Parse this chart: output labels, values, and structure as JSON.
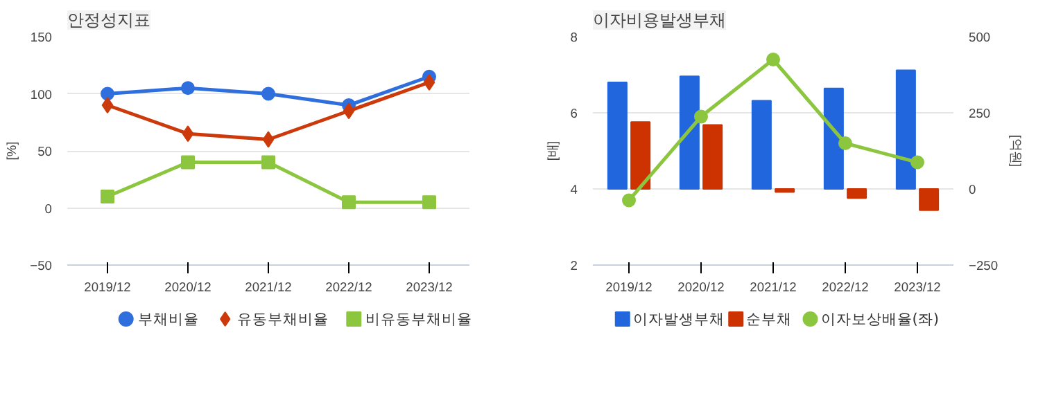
{
  "chart_data": [
    {
      "type": "line",
      "title": "안정성지표",
      "ylabel": "[%]",
      "categories": [
        "2019/12",
        "2020/12",
        "2021/12",
        "2022/12",
        "2023/12"
      ],
      "ylim": [
        -50,
        150
      ],
      "yticks": [
        -50,
        0,
        50,
        100,
        150
      ],
      "grid": "y",
      "legend": "bottom",
      "line_style": "solid",
      "series": [
        {
          "name": "부채비율",
          "color": "#2f6fdd",
          "marker": "circle",
          "values": [
            100,
            105,
            100,
            90,
            115
          ]
        },
        {
          "name": "유동부채비율",
          "color": "#cc3a0c",
          "marker": "diamond",
          "values": [
            90,
            65,
            60,
            85,
            110
          ]
        },
        {
          "name": "비유동부채비율",
          "color": "#8cc63f",
          "marker": "square",
          "values": [
            10,
            40,
            40,
            5,
            5
          ]
        }
      ]
    },
    {
      "type": "bar",
      "title": "이자비용발생부채",
      "ylabel": "[배]",
      "y2label": "[억원]",
      "categories": [
        "2019/12",
        "2020/12",
        "2021/12",
        "2022/12",
        "2023/12"
      ],
      "ylim": [
        2,
        8
      ],
      "yticks": [
        2,
        4,
        6,
        8
      ],
      "y2lim": [
        -250,
        500
      ],
      "y2ticks": [
        -250,
        0,
        250,
        500
      ],
      "grid": "y",
      "legend": "bottom",
      "series": [
        {
          "name": "이자발생부채",
          "color": "#2266dd",
          "axis": "y2",
          "values": [
            350,
            370,
            290,
            330,
            390
          ]
        },
        {
          "name": "순부채",
          "color": "#cc3300",
          "axis": "y2",
          "values": [
            220,
            210,
            -10,
            -30,
            -70
          ]
        },
        {
          "name": "이자보상배율(좌)",
          "type": "line",
          "color": "#8cc63f",
          "marker": "circle",
          "axis": "y",
          "values": [
            3.7,
            5.9,
            7.4,
            5.2,
            4.7
          ]
        }
      ]
    }
  ]
}
